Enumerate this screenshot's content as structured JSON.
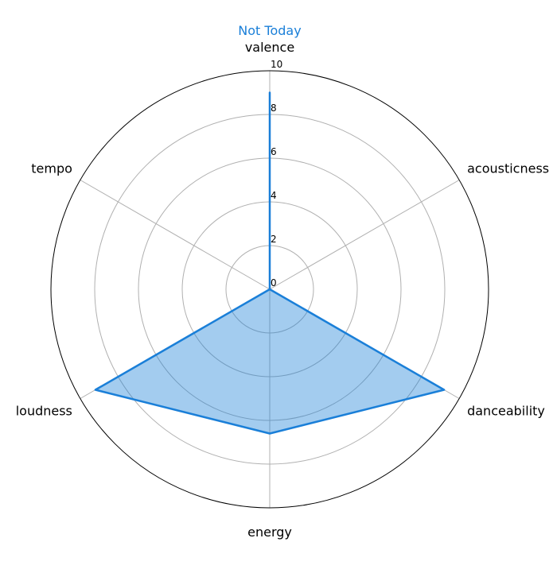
{
  "chart_data": {
    "type": "radar",
    "title": "Not Today",
    "axes": [
      "valence",
      "acousticness",
      "danceability",
      "energy",
      "loudness",
      "tempo"
    ],
    "series": [
      {
        "values": [
          9,
          0,
          9.2,
          6.6,
          9.2,
          0
        ]
      }
    ],
    "rlim": [
      0,
      10
    ],
    "rticks": [
      "0",
      "2",
      "4",
      "6",
      "8",
      "10"
    ],
    "grid": true,
    "colors": {
      "series": "#1a7fd8",
      "title": "#1a7fd8",
      "grid": "#b0b0b0",
      "frame": "#000000"
    }
  }
}
